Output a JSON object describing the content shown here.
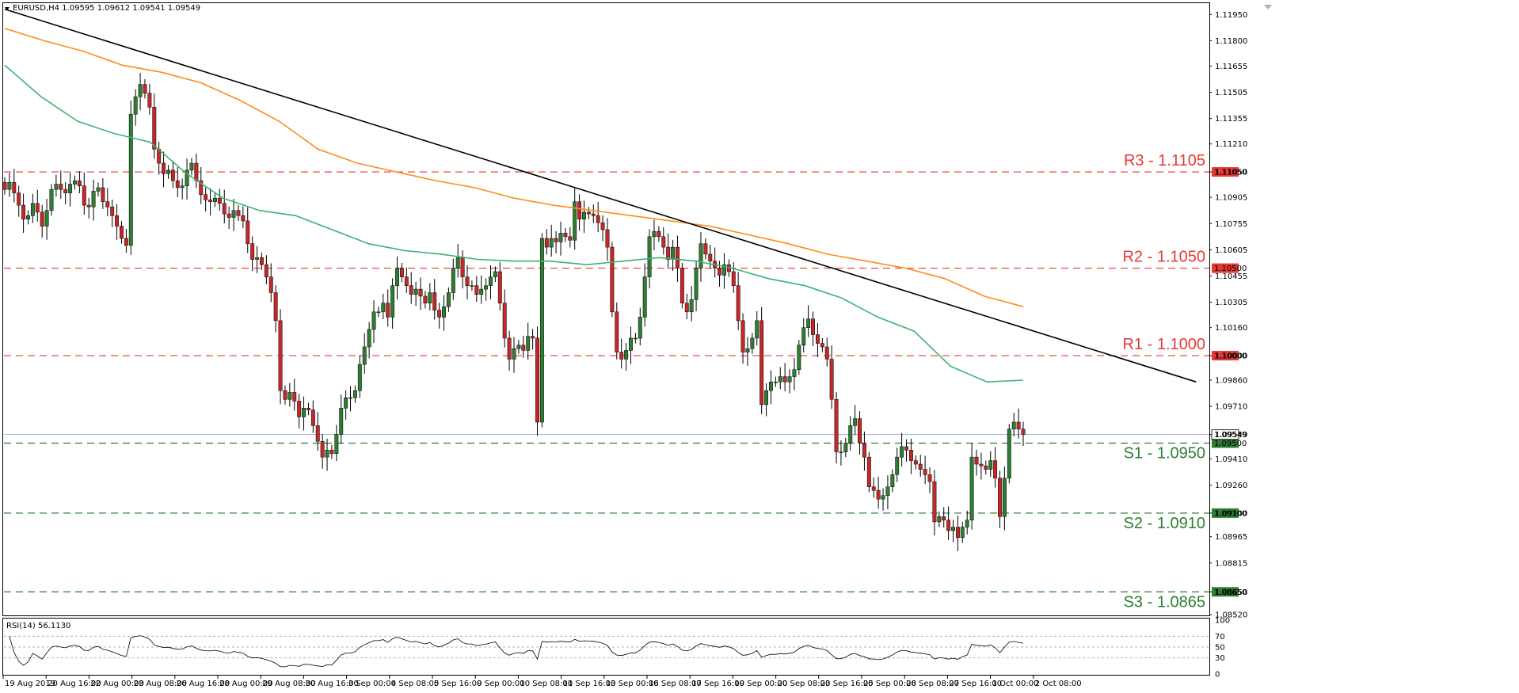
{
  "header": {
    "symbol_info": "EURUSD,H4  1.09595 1.09612 1.09541 1.09549"
  },
  "rsi_panel": {
    "label": "RSI(14) 56.1130",
    "value": 56.113,
    "ticks": [
      "100",
      "70",
      "50",
      "30",
      "0"
    ],
    "levels": [
      30,
      50,
      70
    ]
  },
  "colors": {
    "bull": "#2e7d32",
    "bear": "#c62828",
    "resistance": "#e53935",
    "support": "#2e7d32",
    "ma_fast": "#3cb371",
    "ma_slow": "#ff8c1a",
    "trendline": "#000000",
    "price_line": "#9fb2c4"
  },
  "chart_data": {
    "type": "candlestick",
    "symbol": "EURUSD",
    "timeframe": "H4",
    "ohlc_current": {
      "open": 1.09595,
      "high": 1.09612,
      "low": 1.09541,
      "close": 1.09549
    },
    "y_range": [
      1.0852,
      1.1201
    ],
    "y_ticks": [
      "1.11950",
      "1.11800",
      "1.11655",
      "1.11505",
      "1.11355",
      "1.11210",
      "1.11050",
      "1.10905",
      "1.10755",
      "1.10605",
      "1.10455",
      "1.10305",
      "1.10160",
      "1.10000",
      "1.09860",
      "1.09710",
      "1.09549",
      "1.09410",
      "1.09260",
      "1.09100",
      "1.08965",
      "1.08815",
      "1.08650",
      "1.08520"
    ],
    "x_labels": [
      "19 Aug 2019",
      "20 Aug 16:00",
      "22 Aug 00:00",
      "23 Aug 08:00",
      "26 Aug 16:00",
      "28 Aug 00:00",
      "29 Aug 08:00",
      "30 Aug 16:00",
      "3 Sep 00:00",
      "4 Sep 08:00",
      "5 Sep 16:00",
      "9 Sep 00:00",
      "10 Sep 08:00",
      "11 Sep 16:00",
      "13 Sep 00:00",
      "16 Sep 08:00",
      "17 Sep 16:00",
      "19 Sep 00:00",
      "20 Sep 08:00",
      "23 Sep 16:00",
      "25 Sep 00:00",
      "26 Sep 08:00",
      "27 Sep 16:00",
      "1 Oct 00:00",
      "2 Oct 08:00"
    ],
    "levels": [
      {
        "name": "R3 - 1.1105",
        "value": 1.1105,
        "tag": "1.11050",
        "kind": "resistance"
      },
      {
        "name": "R2 - 1.1050",
        "value": 1.105,
        "tag": "1.10500",
        "kind": "resistance"
      },
      {
        "name": "R1 - 1.1000",
        "value": 1.1,
        "tag": "1.10000",
        "kind": "resistance"
      },
      {
        "name": "S1 - 1.0950",
        "value": 1.095,
        "tag": "1.09500",
        "kind": "support"
      },
      {
        "name": "S2 - 1.0910",
        "value": 1.091,
        "tag": "1.09100",
        "kind": "support"
      },
      {
        "name": "S3 - 1.0865",
        "value": 1.0865,
        "tag": "1.08650",
        "kind": "support"
      }
    ],
    "current_price": {
      "value": 1.09549,
      "tag": "1.09549"
    },
    "trendline": {
      "from": [
        0,
        1.1198
      ],
      "to": [
        255,
        1.0985
      ]
    },
    "closes": [
      1.1095,
      1.1099,
      1.1093,
      1.1086,
      1.1078,
      1.108,
      1.1087,
      1.1082,
      1.1074,
      1.1083,
      1.1095,
      1.1098,
      1.1095,
      1.1093,
      1.1098,
      1.11,
      1.1097,
      1.1086,
      1.1085,
      1.1094,
      1.1096,
      1.1088,
      1.1085,
      1.108,
      1.1074,
      1.1067,
      1.1063,
      1.1138,
      1.1148,
      1.1155,
      1.115,
      1.1142,
      1.1118,
      1.111,
      1.1104,
      1.1106,
      1.11,
      1.1096,
      1.1097,
      1.1106,
      1.111,
      1.11,
      1.1092,
      1.1089,
      1.1088,
      1.109,
      1.1087,
      1.1081,
      1.1079,
      1.1083,
      1.108,
      1.1077,
      1.1064,
      1.1055,
      1.1056,
      1.1052,
      1.1045,
      1.1036,
      1.102,
      1.098,
      1.0975,
      1.0979,
      1.0974,
      1.0965,
      1.097,
      1.0969,
      1.096,
      1.0951,
      1.0942,
      1.0946,
      1.0944,
      1.0955,
      1.097,
      1.0976,
      1.0976,
      1.098,
      1.0995,
      1.1005,
      1.1015,
      1.1025,
      1.1025,
      1.103,
      1.1022,
      1.104,
      1.105,
      1.1045,
      1.104,
      1.1035,
      1.1038,
      1.1034,
      1.103,
      1.1036,
      1.1026,
      1.1022,
      1.1028,
      1.1036,
      1.105,
      1.1056,
      1.1045,
      1.104,
      1.104,
      1.1035,
      1.1038,
      1.104,
      1.1045,
      1.1048,
      1.103,
      1.101,
      1.0998,
      1.1004,
      1.1006,
      1.1003,
      1.1011,
      1.101,
      1.0962,
      1.1067,
      1.1062,
      1.1067,
      1.1065,
      1.107,
      1.1068,
      1.1066,
      1.1088,
      1.1078,
      1.1082,
      1.1081,
      1.108,
      1.1076,
      1.1072,
      1.1062,
      1.1025,
      1.1002,
      1.0998,
      1.1003,
      1.101,
      1.101,
      1.1022,
      1.1045,
      1.1068,
      1.1071,
      1.1068,
      1.1062,
      1.1055,
      1.1062,
      1.105,
      1.103,
      1.1025,
      1.1032,
      1.105,
      1.1064,
      1.1058,
      1.1054,
      1.105,
      1.1046,
      1.1052,
      1.1048,
      1.104,
      1.102,
      1.1002,
      1.1004,
      1.101,
      1.102,
      1.0972,
      1.098,
      1.0985,
      1.0985,
      1.0988,
      1.0985,
      1.0988,
      1.0992,
      1.1006,
      1.1016,
      1.1021,
      1.1012,
      1.1007,
      1.1005,
      1.0998,
      1.0975,
      1.0945,
      1.0945,
      1.095,
      1.096,
      1.0964,
      1.095,
      1.0942,
      1.0925,
      1.0923,
      1.0918,
      1.092,
      1.0925,
      1.0932,
      1.0942,
      1.0948,
      1.0946,
      1.094,
      1.0938,
      1.0935,
      1.0932,
      1.0928,
      1.0905,
      1.0908,
      1.0906,
      1.09,
      1.0902,
      1.0896,
      1.0902,
      1.0906,
      1.0942,
      1.0938,
      1.0937,
      1.0935,
      1.094,
      1.093,
      1.0908,
      1.093,
      1.0958,
      1.0962,
      1.0958,
      1.0955
    ],
    "ma_fast": {
      "name": "",
      "values": [
        1.1166,
        1.1148,
        1.1134,
        1.1127,
        1.1122,
        1.1104,
        1.109,
        1.1083,
        1.108,
        1.1072,
        1.1064,
        1.106,
        1.1058,
        1.1055,
        1.1054,
        1.1054,
        1.1052,
        1.1054,
        1.1056,
        1.1054,
        1.105,
        1.1044,
        1.104,
        1.1033,
        1.1022,
        1.1014,
        1.0994,
        1.0985,
        1.0986
      ]
    },
    "ma_slow": {
      "name": "",
      "values": [
        1.1187,
        1.118,
        1.1174,
        1.1166,
        1.1162,
        1.1156,
        1.1146,
        1.1134,
        1.1118,
        1.111,
        1.1105,
        1.11,
        1.1096,
        1.109,
        1.1086,
        1.1083,
        1.108,
        1.1077,
        1.1074,
        1.1069,
        1.1064,
        1.1058,
        1.1054,
        1.105,
        1.1044,
        1.1034,
        1.1028
      ]
    }
  }
}
